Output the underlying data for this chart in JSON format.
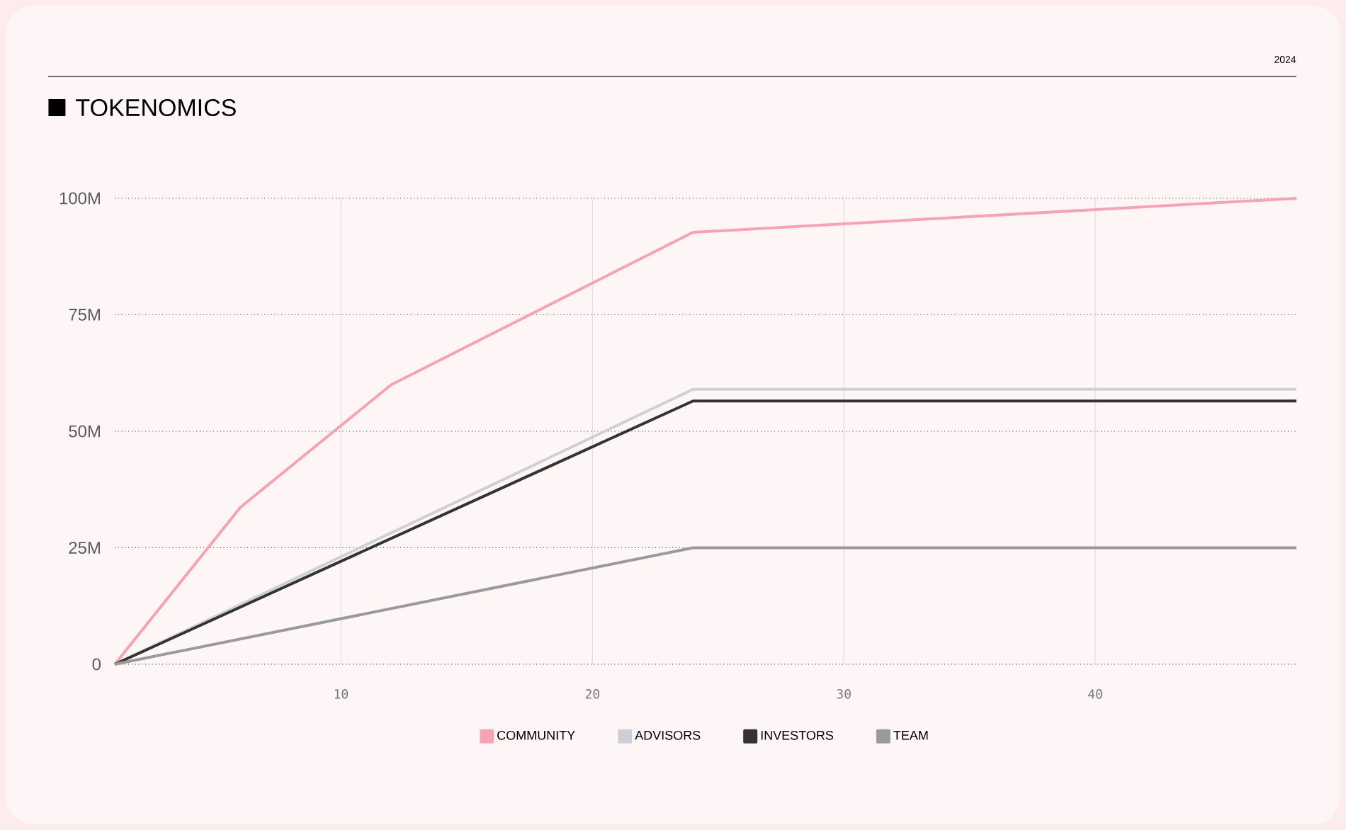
{
  "chart_data": {
    "type": "line",
    "title": "TOKENOMICS",
    "annotations": [
      "2024"
    ],
    "series": [
      {
        "name": "COMMUNITY",
        "color": "#f5a3b5",
        "x": [
          1,
          6,
          12,
          24,
          48
        ],
        "values": [
          0,
          33.7,
          60,
          92.7,
          100
        ]
      },
      {
        "name": "ADVISORS",
        "color": "#cfcfd8",
        "x": [
          1,
          24,
          48
        ],
        "values": [
          0,
          59,
          59
        ]
      },
      {
        "name": "INVESTORS",
        "color": "#333333",
        "x": [
          1,
          24,
          48
        ],
        "values": [
          0,
          56.5,
          56.5
        ]
      },
      {
        "name": "TEAM",
        "color": "#9a9a9a",
        "x": [
          1,
          24,
          48
        ],
        "values": [
          0,
          25,
          25
        ]
      }
    ],
    "xlim": [
      1,
      48
    ],
    "ylim": [
      0,
      100
    ],
    "xticks": [
      10,
      20,
      30,
      40
    ],
    "yticks": [
      {
        "value": 0,
        "label": "0"
      },
      {
        "value": 25,
        "label": "25M"
      },
      {
        "value": 50,
        "label": "50M"
      },
      {
        "value": 75,
        "label": "75M"
      },
      {
        "value": 100,
        "label": "100M"
      }
    ],
    "grid": true,
    "legend": "bottom"
  }
}
